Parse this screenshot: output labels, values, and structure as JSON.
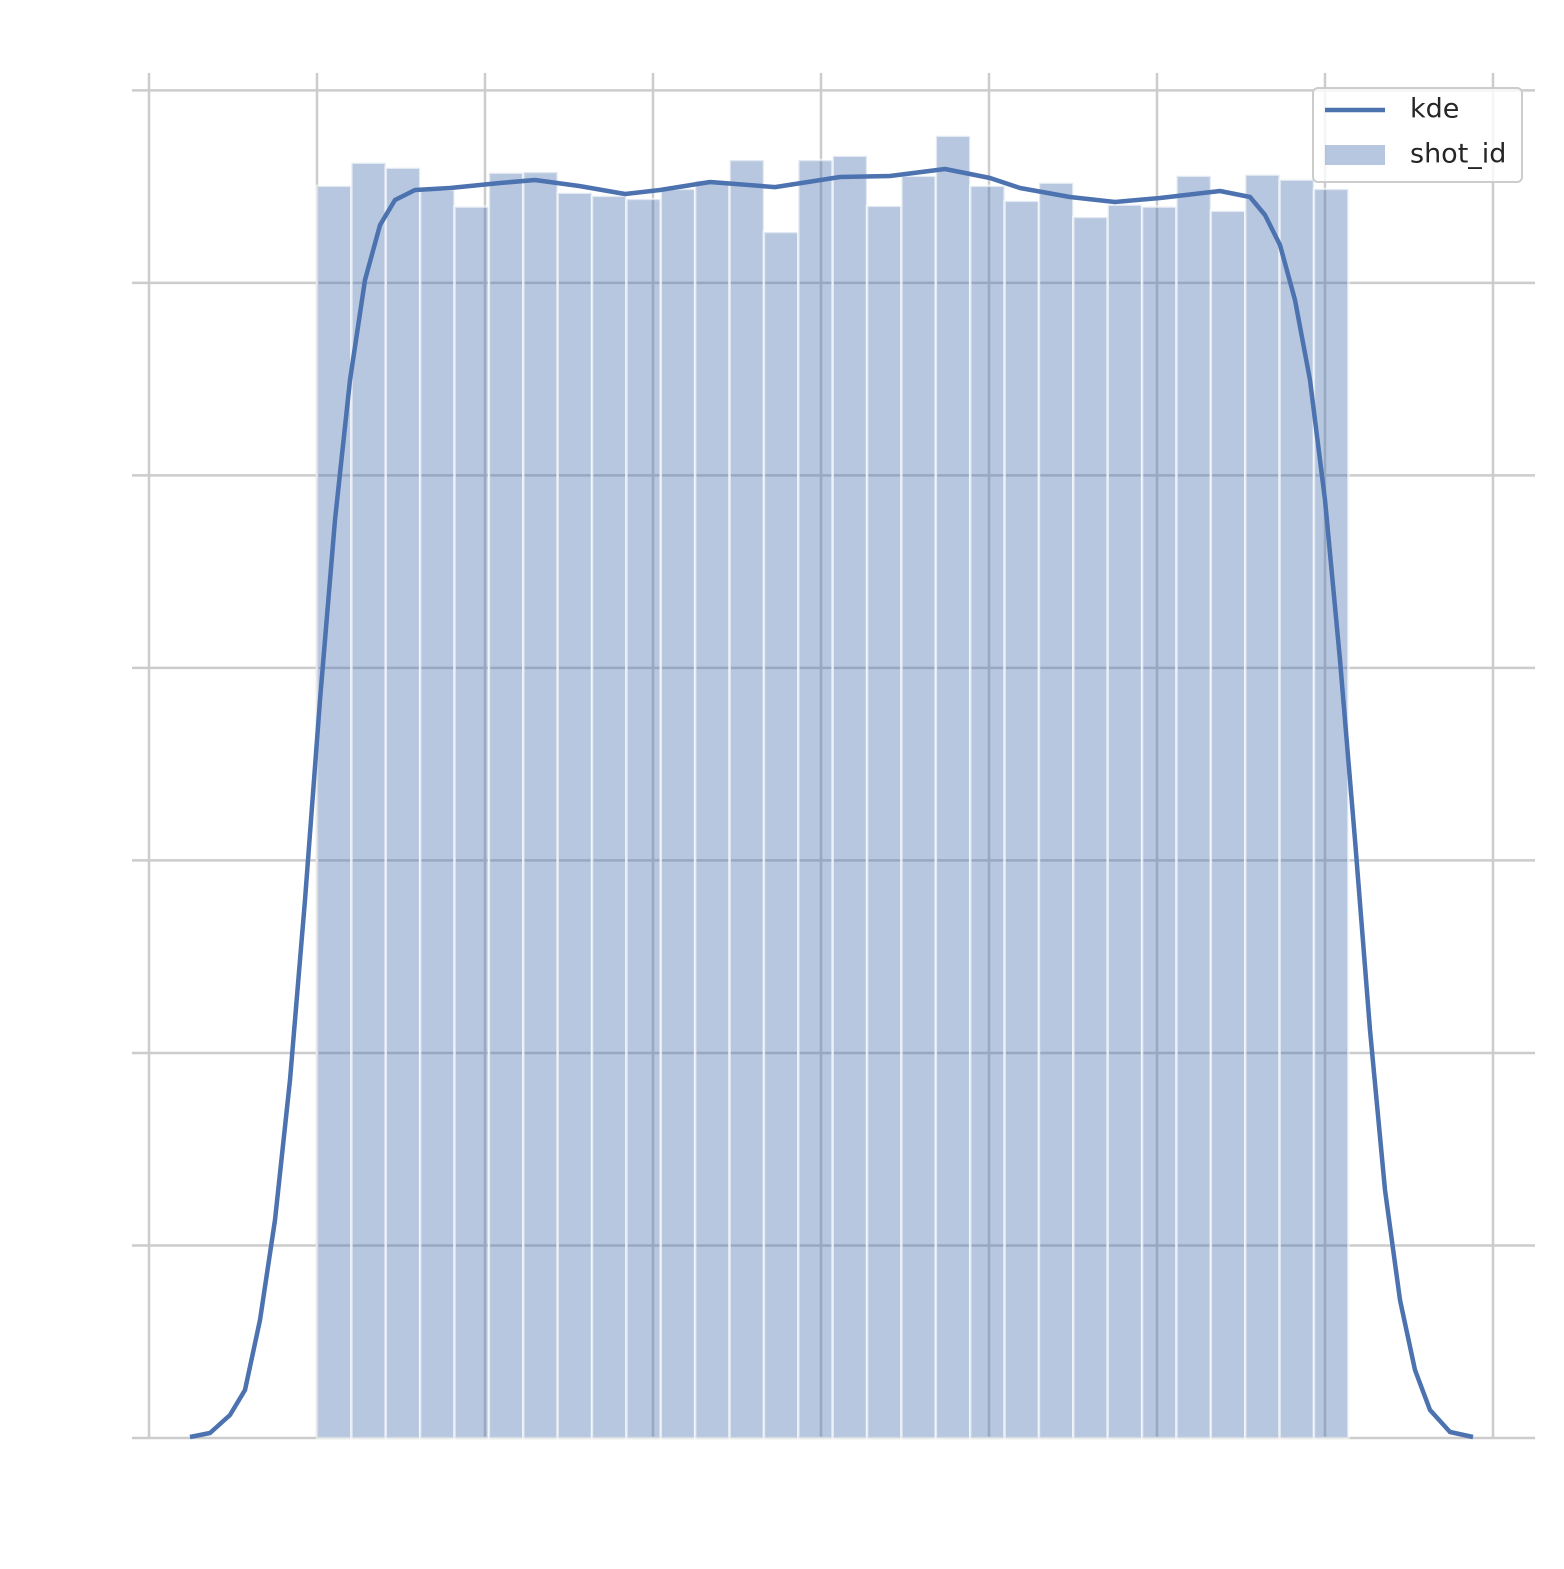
{
  "chart_data": {
    "type": "histogram",
    "grid": true,
    "legend": "upper right",
    "xlim": [
      -5506,
      36250
    ],
    "ylim": [
      0,
      3.545e-05
    ],
    "xticks": [
      -5000,
      0,
      5000,
      10000,
      15000,
      20000,
      25000,
      30000,
      35000
    ],
    "yticks": [
      0,
      5e-06,
      1e-05,
      1.5e-05,
      2e-05,
      2.5e-05,
      3e-05,
      3.5e-05
    ],
    "series": [
      {
        "name": "kde",
        "type": "line",
        "color": "#4c72b0",
        "x": [
          -3780,
          -3185,
          -2589,
          -2143,
          -1696,
          -1250,
          -804,
          -357,
          89,
          536,
          982,
          1429,
          1875,
          2321,
          2917,
          3958,
          5446,
          6488,
          7827,
          9167,
          10208,
          11696,
          13631,
          15565,
          17054,
          18690,
          20030,
          20923,
          22411,
          23750,
          25089,
          26875,
          27768,
          28214,
          28661,
          29107,
          29554,
          30000,
          30446,
          30893,
          31339,
          31786,
          32232,
          32679,
          33125,
          33720,
          34405
        ],
        "values": [
          2.6e-08,
          1.3e-07,
          5.97e-07,
          1.247e-06,
          3.064e-06,
          5.661e-06,
          9.297e-06,
          1.3972e-05,
          1.9166e-05,
          2.384e-05,
          2.7476e-05,
          3.0073e-05,
          3.1501e-05,
          3.2151e-05,
          3.2411e-05,
          3.2463e-05,
          3.2592e-05,
          3.267e-05,
          3.2514e-05,
          3.2307e-05,
          3.2411e-05,
          3.2618e-05,
          3.2488e-05,
          3.2748e-05,
          3.2774e-05,
          3.2956e-05,
          3.2722e-05,
          3.2463e-05,
          3.2229e-05,
          3.2099e-05,
          3.2203e-05,
          3.2385e-05,
          3.2229e-05,
          3.1761e-05,
          3.0982e-05,
          2.9554e-05,
          2.7476e-05,
          2.436e-05,
          2.0205e-05,
          1.553e-05,
          1.0596e-05,
          6.441e-06,
          3.584e-06,
          1.766e-06,
          7.27e-07,
          1.56e-07,
          2.6e-08
        ]
      },
      {
        "name": "shot_id",
        "type": "histogram",
        "color": "#4c72b0",
        "alpha": 0.4,
        "bins": [
          1,
          1024,
          2047,
          3070,
          4093,
          5116,
          6140,
          7163,
          8186,
          9209,
          10232,
          11255,
          12279,
          13302,
          14325,
          15348,
          16371,
          17394,
          18418,
          19441,
          20464,
          21487,
          22510,
          23533,
          24557,
          25580,
          26603,
          27626,
          28649,
          29672,
          30697
        ],
        "values": [
          3.252e-05,
          3.312e-05,
          3.299e-05,
          3.242e-05,
          3.198e-05,
          3.286e-05,
          3.288e-05,
          3.234e-05,
          3.226e-05,
          3.218e-05,
          3.244e-05,
          3.265e-05,
          3.319e-05,
          3.132e-05,
          3.319e-05,
          3.33e-05,
          3.2e-05,
          3.278e-05,
          3.382e-05,
          3.252e-05,
          3.213e-05,
          3.26e-05,
          3.171e-05,
          3.203e-05,
          3.198e-05,
          3.278e-05,
          3.187e-05,
          3.281e-05,
          3.268e-05,
          3.244e-05
        ]
      }
    ]
  }
}
